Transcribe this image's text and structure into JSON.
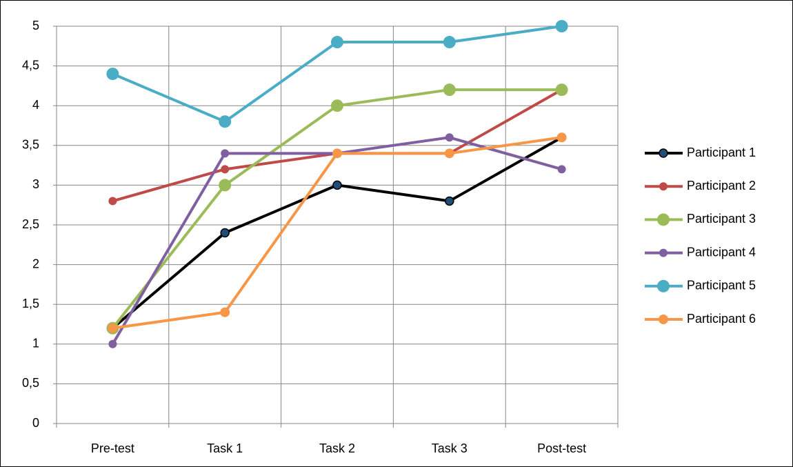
{
  "chart_data": {
    "type": "line",
    "categories": [
      "Pre-test",
      "Task 1",
      "Task 2",
      "Task 3",
      "Post-test"
    ],
    "series": [
      {
        "name": "Participant 1",
        "color": "#000000",
        "values": [
          1.2,
          2.4,
          3.0,
          2.8,
          3.6
        ]
      },
      {
        "name": "Participant 2",
        "color": "#be4b48",
        "values": [
          2.8,
          3.2,
          3.4,
          3.4,
          4.2
        ]
      },
      {
        "name": "Participant 3",
        "color": "#9bbb59",
        "values": [
          1.2,
          3.0,
          4.0,
          4.2,
          4.2
        ]
      },
      {
        "name": "Participant 4",
        "color": "#7f5fa0",
        "values": [
          1.0,
          3.4,
          3.4,
          3.6,
          3.2
        ]
      },
      {
        "name": "Participant 5",
        "color": "#4bacc6",
        "values": [
          4.4,
          3.8,
          4.8,
          4.8,
          5.0
        ]
      },
      {
        "name": "Participant 6",
        "color": "#f79646",
        "values": [
          1.2,
          1.4,
          3.4,
          3.4,
          3.6
        ]
      }
    ],
    "ylim": [
      0,
      5
    ],
    "yticks": [
      0,
      {
        "value": 0.5,
        "label": "0,5"
      },
      1,
      {
        "value": 1.5,
        "label": "1,5"
      },
      2,
      {
        "value": 2.5,
        "label": "2,5"
      },
      3,
      {
        "value": 3.5,
        "label": "3,5"
      },
      4,
      {
        "value": 4.5,
        "label": "4,5"
      },
      5
    ],
    "grid": true,
    "legend": "right"
  }
}
